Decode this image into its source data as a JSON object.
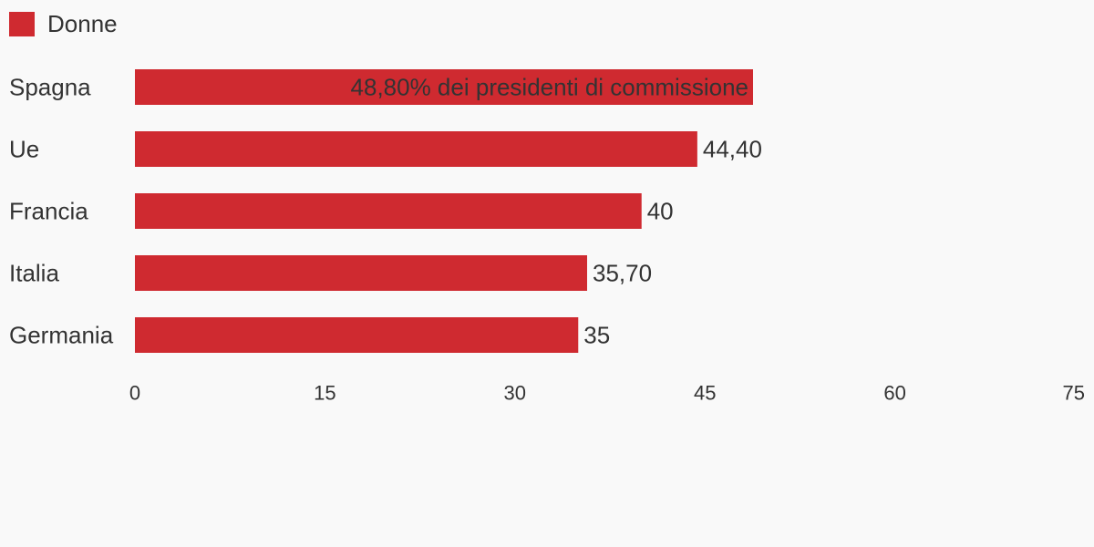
{
  "chart_data": {
    "type": "bar",
    "orientation": "horizontal",
    "categories": [
      "Spagna",
      "Ue",
      "Francia",
      "Italia",
      "Germania"
    ],
    "series": [
      {
        "name": "Donne",
        "color": "#cf2a30",
        "values": [
          48.8,
          44.4,
          40,
          35.7,
          35
        ],
        "value_labels": [
          "48,80% dei presidenti di commissione",
          "44,40",
          "40",
          "35,70",
          "35"
        ]
      }
    ],
    "xlim": [
      0,
      75
    ],
    "x_ticks": [
      0,
      15,
      30,
      45,
      60,
      75
    ],
    "x_tick_labels": [
      "0",
      "15",
      "30",
      "45",
      "60",
      "75"
    ],
    "grid": false,
    "legend_position": "top-left"
  }
}
